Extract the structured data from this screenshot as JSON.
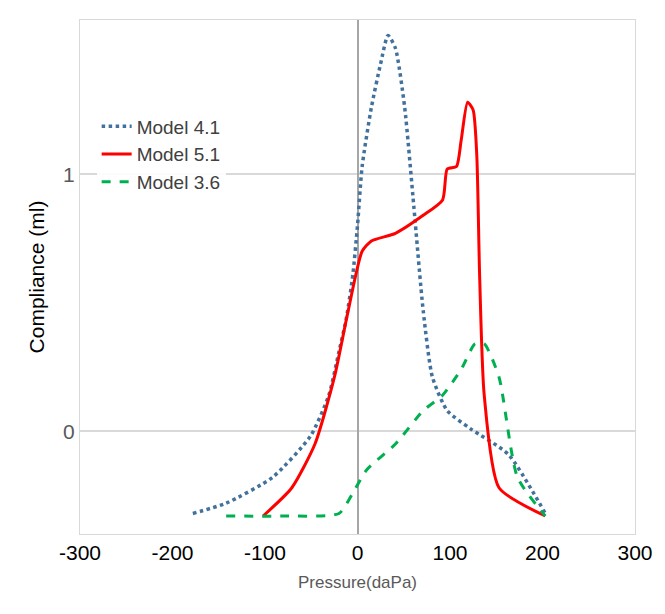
{
  "chart_data": {
    "type": "line",
    "x_label": "Pressure(daPa)",
    "y_label": "Compliance (ml)",
    "xlim": [
      -300,
      300
    ],
    "xticks": [
      -300,
      -200,
      -100,
      0,
      100,
      200,
      300
    ],
    "ylim": [
      -0.4,
      1.6
    ],
    "yticks": [
      0,
      1
    ],
    "grid": true,
    "legend": "top left",
    "series": [
      {
        "name": "Model 4.1",
        "color": "#41719c",
        "line_style": "dotted",
        "x": [
          -178,
          -142,
          -92,
          -51,
          -31,
          -20,
          -12,
          -5,
          0,
          5,
          15,
          25,
          33,
          41,
          51,
          61,
          71,
          81,
          97,
          122,
          163,
          203
        ],
        "values": [
          -0.32,
          -0.28,
          -0.18,
          -0.02,
          0.14,
          0.31,
          0.44,
          0.61,
          0.8,
          1.03,
          1.26,
          1.43,
          1.54,
          1.49,
          1.26,
          0.87,
          0.47,
          0.21,
          0.08,
          0.01,
          -0.09,
          -0.32
        ]
      },
      {
        "name": "Model 5.1",
        "color": "#ff0000",
        "line_style": "solid",
        "x": [
          -102,
          -71,
          -46,
          -25,
          -10,
          5,
          15,
          41,
          71,
          92,
          97,
          107,
          112,
          119,
          125,
          129,
          132,
          137,
          153,
          203
        ],
        "values": [
          -0.33,
          -0.22,
          -0.05,
          0.21,
          0.47,
          0.7,
          0.74,
          0.77,
          0.84,
          0.9,
          1.02,
          1.03,
          1.13,
          1.28,
          1.25,
          1.07,
          0.61,
          0.14,
          -0.22,
          -0.33
        ]
      },
      {
        "name": "Model 3.6",
        "color": "#00b050",
        "line_style": "dashed",
        "x": [
          -142,
          -81,
          -20,
          -5,
          10,
          41,
          71,
          92,
          112,
          127,
          137,
          153,
          173,
          203
        ],
        "values": [
          -0.33,
          -0.33,
          -0.32,
          -0.24,
          -0.15,
          -0.05,
          0.08,
          0.14,
          0.24,
          0.34,
          0.34,
          0.21,
          -0.18,
          -0.33
        ]
      }
    ]
  }
}
